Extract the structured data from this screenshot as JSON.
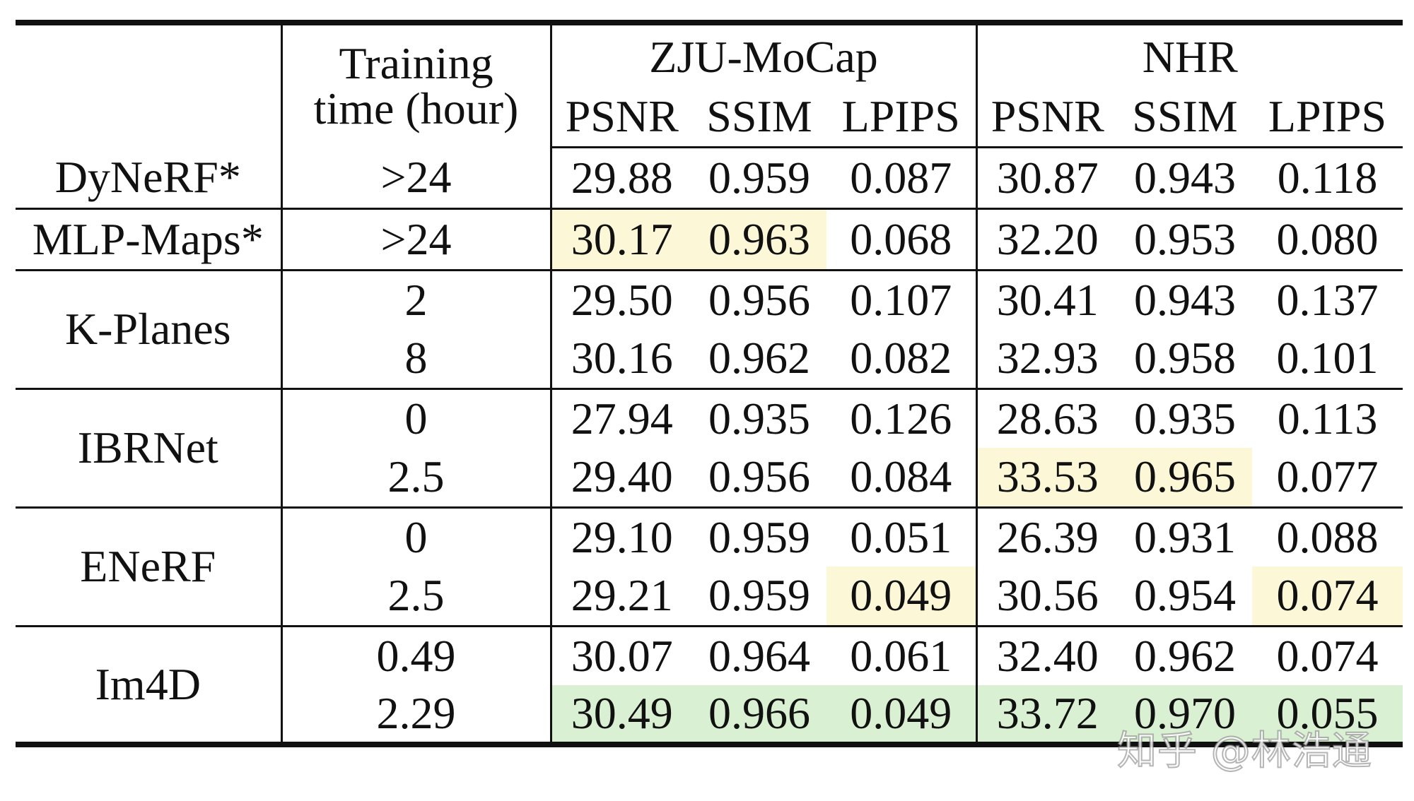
{
  "table": {
    "header": {
      "training_line1": "Training",
      "training_line2": "time (hour)",
      "group_zju": "ZJU-MoCap",
      "group_nhr": "NHR",
      "metrics": [
        "PSNR",
        "SSIM",
        "LPIPS",
        "PSNR",
        "SSIM",
        "LPIPS"
      ]
    },
    "rows": [
      {
        "method": "DyNeRF*",
        "time": ">24",
        "values": [
          "29.88",
          "0.959",
          "0.087",
          "30.87",
          "0.943",
          "0.118"
        ]
      },
      {
        "method": "MLP-Maps*",
        "time": ">24",
        "values": [
          "30.17",
          "0.963",
          "0.068",
          "32.20",
          "0.953",
          "0.080"
        ]
      },
      {
        "method": "K-Planes",
        "time": "2",
        "values": [
          "29.50",
          "0.956",
          "0.107",
          "30.41",
          "0.943",
          "0.137"
        ]
      },
      {
        "method": "K-Planes",
        "time": "8",
        "values": [
          "30.16",
          "0.962",
          "0.082",
          "32.93",
          "0.958",
          "0.101"
        ]
      },
      {
        "method": "IBRNet",
        "time": "0",
        "values": [
          "27.94",
          "0.935",
          "0.126",
          "28.63",
          "0.935",
          "0.113"
        ]
      },
      {
        "method": "IBRNet",
        "time": "2.5",
        "values": [
          "29.40",
          "0.956",
          "0.084",
          "33.53",
          "0.965",
          "0.077"
        ]
      },
      {
        "method": "ENeRF",
        "time": "0",
        "values": [
          "29.10",
          "0.959",
          "0.051",
          "26.39",
          "0.931",
          "0.088"
        ]
      },
      {
        "method": "ENeRF",
        "time": "2.5",
        "values": [
          "29.21",
          "0.959",
          "0.049",
          "30.56",
          "0.954",
          "0.074"
        ]
      },
      {
        "method": "Im4D",
        "time": "0.49",
        "values": [
          "30.07",
          "0.964",
          "0.061",
          "32.40",
          "0.962",
          "0.074"
        ]
      },
      {
        "method": "Im4D",
        "time": "2.29",
        "values": [
          "30.49",
          "0.966",
          "0.049",
          "33.72",
          "0.970",
          "0.055"
        ]
      }
    ],
    "highlight_colors": {
      "second_best": "#fcf7d7",
      "best": "#d9f0d3"
    }
  },
  "watermark": "知乎 @林浩通"
}
